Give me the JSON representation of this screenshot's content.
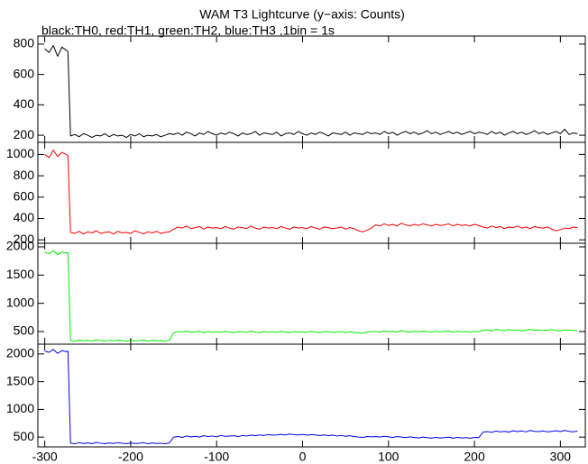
{
  "title": "WAM T3 Lightcurve (y−axis: Counts)",
  "subtitle": "black:TH0, red:TH1, green:TH2, blue:TH3 ,1bin = 1s",
  "xlim": [
    -308,
    329
  ],
  "xticks": [
    -300,
    -200,
    -100,
    0,
    100,
    200,
    300
  ],
  "x": [
    -300,
    -295,
    -290,
    -285,
    -280,
    -275,
    -273,
    -270,
    -265,
    -260,
    -255,
    -250,
    -245,
    -240,
    -235,
    -230,
    -225,
    -220,
    -215,
    -210,
    -205,
    -200,
    -195,
    -190,
    -185,
    -180,
    -175,
    -170,
    -165,
    -160,
    -155,
    -150,
    -145,
    -140,
    -135,
    -130,
    -125,
    -120,
    -115,
    -110,
    -105,
    -100,
    -95,
    -90,
    -85,
    -80,
    -75,
    -70,
    -65,
    -60,
    -55,
    -50,
    -45,
    -40,
    -35,
    -30,
    -25,
    -20,
    -15,
    -10,
    -5,
    0,
    5,
    10,
    15,
    20,
    25,
    30,
    35,
    40,
    45,
    50,
    55,
    60,
    65,
    70,
    75,
    80,
    85,
    90,
    95,
    100,
    105,
    110,
    115,
    120,
    125,
    130,
    135,
    140,
    145,
    150,
    155,
    160,
    165,
    170,
    175,
    180,
    185,
    190,
    195,
    200,
    205,
    210,
    215,
    220,
    225,
    230,
    235,
    240,
    245,
    250,
    255,
    260,
    265,
    270,
    275,
    280,
    285,
    290,
    295,
    300,
    305,
    310,
    315,
    320
  ],
  "chart_data": [
    {
      "type": "line",
      "ylim": [
        153,
        853
      ],
      "yticks": [
        200,
        400,
        600,
        800
      ],
      "series": [
        {
          "color": "#000000",
          "values": [
            770,
            745,
            790,
            720,
            780,
            760,
            750,
            195,
            205,
            190,
            210,
            200,
            185,
            200,
            195,
            210,
            190,
            205,
            195,
            200,
            185,
            205,
            195,
            210,
            190,
            200,
            195,
            205,
            190,
            200,
            210,
            205,
            215,
            200,
            220,
            210,
            195,
            215,
            205,
            225,
            210,
            200,
            215,
            205,
            220,
            210,
            195,
            215,
            205,
            210,
            225,
            200,
            215,
            210,
            205,
            220,
            195,
            210,
            215,
            205,
            225,
            210,
            200,
            215,
            205,
            220,
            210,
            195,
            215,
            210,
            205,
            220,
            200,
            215,
            210,
            205,
            220,
            210,
            215,
            205,
            225,
            210,
            220,
            200,
            215,
            225,
            210,
            220,
            205,
            215,
            230,
            210,
            220,
            205,
            215,
            225,
            210,
            220,
            205,
            215,
            225,
            210,
            220,
            215,
            205,
            225,
            210,
            220,
            200,
            215,
            225,
            210,
            220,
            205,
            215,
            230,
            210,
            220,
            205,
            215,
            225,
            210,
            240,
            205,
            215,
            210
          ]
        }
      ]
    },
    {
      "type": "line",
      "ylim": [
        168,
        1113
      ],
      "yticks": [
        200,
        400,
        600,
        800,
        1000
      ],
      "series": [
        {
          "color": "#ff0000",
          "values": [
            1000,
            970,
            1040,
            980,
            1020,
            1000,
            990,
            270,
            260,
            280,
            255,
            275,
            265,
            285,
            260,
            270,
            275,
            255,
            280,
            265,
            270,
            260,
            285,
            270,
            255,
            275,
            265,
            280,
            260,
            270,
            275,
            300,
            320,
            310,
            330,
            305,
            315,
            325,
            300,
            320,
            310,
            315,
            305,
            325,
            310,
            300,
            320,
            315,
            305,
            330,
            310,
            300,
            320,
            310,
            315,
            305,
            325,
            310,
            300,
            320,
            310,
            315,
            305,
            325,
            310,
            300,
            320,
            315,
            305,
            310,
            320,
            300,
            315,
            305,
            285,
            275,
            290,
            310,
            340,
            330,
            350,
            335,
            345,
            330,
            355,
            340,
            330,
            345,
            335,
            350,
            340,
            330,
            345,
            335,
            340,
            350,
            330,
            345,
            335,
            340,
            330,
            345,
            335,
            320,
            310,
            330,
            315,
            325,
            305,
            320,
            315,
            330,
            310,
            320,
            305,
            325,
            315,
            310,
            320,
            300,
            285,
            295,
            310,
            305,
            320,
            315
          ]
        }
      ]
    },
    {
      "type": "line",
      "ylim": [
        276,
        2064
      ],
      "yticks": [
        500,
        1000,
        1500,
        2000
      ],
      "series": [
        {
          "color": "#00ee00",
          "values": [
            1900,
            1880,
            1930,
            1860,
            1910,
            1890,
            1900,
            340,
            330,
            350,
            335,
            345,
            330,
            355,
            340,
            330,
            345,
            335,
            350,
            340,
            330,
            345,
            335,
            340,
            350,
            330,
            345,
            335,
            340,
            330,
            345,
            480,
            500,
            490,
            510,
            485,
            495,
            505,
            480,
            500,
            490,
            495,
            485,
            505,
            490,
            480,
            500,
            495,
            485,
            510,
            490,
            480,
            500,
            490,
            495,
            485,
            505,
            490,
            480,
            500,
            490,
            495,
            485,
            505,
            490,
            480,
            500,
            495,
            485,
            490,
            500,
            480,
            495,
            485,
            475,
            470,
            490,
            500,
            500,
            490,
            510,
            495,
            505,
            490,
            515,
            500,
            490,
            505,
            495,
            510,
            500,
            490,
            505,
            495,
            500,
            510,
            490,
            505,
            495,
            500,
            490,
            505,
            495,
            520,
            530,
            510,
            540,
            525,
            515,
            535,
            520,
            530,
            510,
            525,
            540,
            520,
            530,
            515,
            525,
            535,
            520,
            510,
            530,
            525,
            520,
            515
          ]
        }
      ]
    },
    {
      "type": "line",
      "ylim": [
        324,
        2176
      ],
      "yticks": [
        500,
        1000,
        1500,
        2000
      ],
      "series": [
        {
          "color": "#0000ee",
          "values": [
            2050,
            2030,
            2080,
            2010,
            2060,
            2040,
            2050,
            390,
            380,
            400,
            385,
            395,
            380,
            405,
            390,
            380,
            395,
            385,
            400,
            390,
            380,
            395,
            385,
            390,
            400,
            380,
            395,
            385,
            390,
            380,
            395,
            500,
            510,
            495,
            520,
            505,
            515,
            500,
            525,
            510,
            520,
            505,
            530,
            515,
            520,
            525,
            510,
            530,
            520,
            535,
            525,
            540,
            530,
            545,
            535,
            540,
            550,
            540,
            555,
            545,
            540,
            550,
            535,
            545,
            540,
            530,
            540,
            525,
            535,
            520,
            530,
            515,
            525,
            510,
            500,
            495,
            510,
            505,
            510,
            500,
            515,
            505,
            495,
            510,
            500,
            490,
            505,
            495,
            485,
            500,
            490,
            480,
            495,
            485,
            490,
            500,
            480,
            495,
            485,
            490,
            480,
            495,
            490,
            590,
            600,
            585,
            610,
            595,
            605,
            590,
            615,
            600,
            610,
            595,
            620,
            605,
            600,
            610,
            595,
            605,
            615,
            600,
            620,
            605,
            595,
            610
          ]
        }
      ]
    }
  ]
}
